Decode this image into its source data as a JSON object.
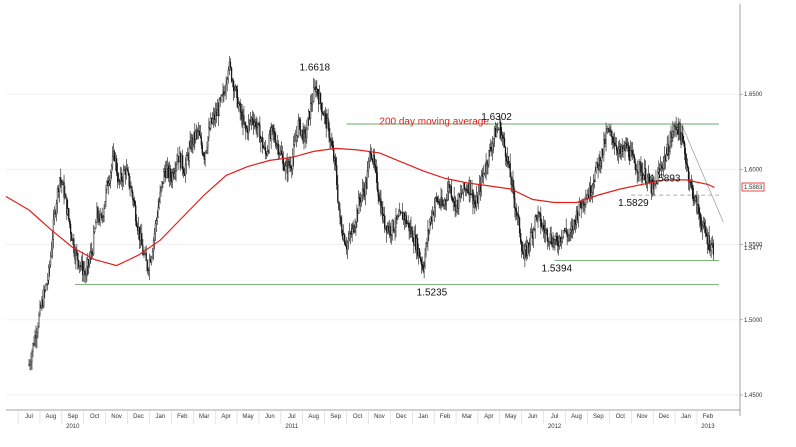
{
  "colors": {
    "price": "#111111",
    "moving_average": "#e0201b",
    "support_resistance": "#6aaa6a",
    "trendline": "#999999",
    "grid": "#e8e8e8",
    "axis": "#888888",
    "last_price_tag": "#e0201b"
  },
  "chart_data": {
    "type": "candlestick",
    "title": "",
    "xlabel": "",
    "ylabel": "",
    "grid": false,
    "y_axis_position": "right",
    "ylim": [
      1.44,
      1.71
    ],
    "yticks": [
      {
        "value": 1.65,
        "label": "1.6500"
      },
      {
        "value": 1.6,
        "label": "1.6000"
      },
      {
        "value": 1.55,
        "label": "1.5500"
      },
      {
        "value": 1.5,
        "label": "1.5000"
      },
      {
        "value": 1.45,
        "label": "1.4500"
      }
    ],
    "y_tags": [
      {
        "value": 1.5883,
        "label": "1.5883",
        "style": "red-box"
      },
      {
        "value": 1.5477,
        "label": "1.5477",
        "style": "plain"
      }
    ],
    "x_months": [
      "Jul",
      "Aug",
      "Sep",
      "Oct",
      "Nov",
      "Dec",
      "Jan",
      "Feb",
      "Mar",
      "Apr",
      "May",
      "Jun",
      "Jul",
      "Aug",
      "Sep",
      "Oct",
      "Nov",
      "Dec",
      "Jan",
      "Feb",
      "Mar",
      "Apr",
      "May",
      "Jun",
      "Jul",
      "Aug",
      "Sep",
      "Oct",
      "Nov",
      "Dec",
      "Jan",
      "Feb"
    ],
    "x_years": [
      {
        "label": "2010",
        "month_index": 2
      },
      {
        "label": "2011",
        "month_index": 12
      },
      {
        "label": "2012",
        "month_index": 24
      },
      {
        "label": "2013",
        "month_index": 31
      }
    ],
    "price_series": {
      "name": "",
      "points": [
        [
          0,
          1.47
        ],
        [
          0.5,
          1.505
        ],
        [
          0.9,
          1.53
        ],
        [
          1.2,
          1.575
        ],
        [
          1.4,
          1.595
        ],
        [
          1.6,
          1.585
        ],
        [
          1.9,
          1.56
        ],
        [
          2.1,
          1.545
        ],
        [
          2.4,
          1.535
        ],
        [
          2.6,
          1.53
        ],
        [
          2.9,
          1.548
        ],
        [
          3.1,
          1.57
        ],
        [
          3.3,
          1.565
        ],
        [
          3.6,
          1.592
        ],
        [
          3.9,
          1.61
        ],
        [
          4.1,
          1.59
        ],
        [
          4.4,
          1.6
        ],
        [
          4.7,
          1.585
        ],
        [
          5.0,
          1.56
        ],
        [
          5.2,
          1.545
        ],
        [
          5.4,
          1.535
        ],
        [
          5.6,
          1.545
        ],
        [
          5.9,
          1.575
        ],
        [
          6.2,
          1.6
        ],
        [
          6.5,
          1.595
        ],
        [
          6.8,
          1.61
        ],
        [
          7.1,
          1.6
        ],
        [
          7.4,
          1.617
        ],
        [
          7.7,
          1.625
        ],
        [
          8.0,
          1.61
        ],
        [
          8.3,
          1.63
        ],
        [
          8.6,
          1.638
        ],
        [
          8.9,
          1.65
        ],
        [
          9.1,
          1.67
        ],
        [
          9.3,
          1.66
        ],
        [
          9.6,
          1.64
        ],
        [
          9.9,
          1.625
        ],
        [
          10.2,
          1.635
        ],
        [
          10.5,
          1.625
        ],
        [
          10.8,
          1.61
        ],
        [
          11.1,
          1.625
        ],
        [
          11.4,
          1.615
        ],
        [
          11.7,
          1.6
        ],
        [
          12.0,
          1.605
        ],
        [
          12.3,
          1.63
        ],
        [
          12.6,
          1.62
        ],
        [
          12.9,
          1.645
        ],
        [
          13.1,
          1.655
        ],
        [
          13.4,
          1.64
        ],
        [
          13.7,
          1.625
        ],
        [
          14.0,
          1.6
        ],
        [
          14.2,
          1.565
        ],
        [
          14.5,
          1.55
        ],
        [
          14.8,
          1.56
        ],
        [
          15.1,
          1.58
        ],
        [
          15.4,
          1.59
        ],
        [
          15.6,
          1.615
        ],
        [
          15.9,
          1.59
        ],
        [
          16.2,
          1.565
        ],
        [
          16.5,
          1.56
        ],
        [
          16.8,
          1.565
        ],
        [
          17.1,
          1.57
        ],
        [
          17.4,
          1.56
        ],
        [
          17.7,
          1.55
        ],
        [
          18.0,
          1.535
        ],
        [
          18.3,
          1.565
        ],
        [
          18.6,
          1.58
        ],
        [
          18.9,
          1.575
        ],
        [
          19.2,
          1.59
        ],
        [
          19.5,
          1.575
        ],
        [
          19.8,
          1.585
        ],
        [
          20.1,
          1.59
        ],
        [
          20.4,
          1.575
        ],
        [
          20.7,
          1.595
        ],
        [
          21.0,
          1.61
        ],
        [
          21.3,
          1.625
        ],
        [
          21.5,
          1.628
        ],
        [
          21.8,
          1.61
        ],
        [
          22.1,
          1.585
        ],
        [
          22.4,
          1.56
        ],
        [
          22.6,
          1.54
        ],
        [
          22.9,
          1.555
        ],
        [
          23.2,
          1.57
        ],
        [
          23.5,
          1.56
        ],
        [
          23.8,
          1.555
        ],
        [
          24.1,
          1.55
        ],
        [
          24.4,
          1.56
        ],
        [
          24.7,
          1.555
        ],
        [
          25.0,
          1.57
        ],
        [
          25.3,
          1.58
        ],
        [
          25.6,
          1.585
        ],
        [
          25.9,
          1.6
        ],
        [
          26.2,
          1.612
        ],
        [
          26.4,
          1.625
        ],
        [
          26.7,
          1.62
        ],
        [
          27.0,
          1.61
        ],
        [
          27.3,
          1.615
        ],
        [
          27.6,
          1.605
        ],
        [
          27.9,
          1.6
        ],
        [
          28.2,
          1.595
        ],
        [
          28.5,
          1.585
        ],
        [
          28.8,
          1.6
        ],
        [
          29.1,
          1.61
        ],
        [
          29.4,
          1.625
        ],
        [
          29.6,
          1.63
        ],
        [
          29.9,
          1.615
        ],
        [
          30.2,
          1.59
        ],
        [
          30.5,
          1.575
        ],
        [
          30.8,
          1.56
        ],
        [
          31.1,
          1.55
        ],
        [
          31.3,
          1.547
        ]
      ]
    },
    "moving_average_series": {
      "name": "200 day moving average",
      "points": [
        [
          0,
          1.573
        ],
        [
          1,
          1.56
        ],
        [
          2,
          1.548
        ],
        [
          3,
          1.54
        ],
        [
          4,
          1.536
        ],
        [
          5,
          1.543
        ],
        [
          6,
          1.553
        ],
        [
          7,
          1.568
        ],
        [
          8,
          1.583
        ],
        [
          9,
          1.596
        ],
        [
          10,
          1.602
        ],
        [
          11,
          1.606
        ],
        [
          12,
          1.608
        ],
        [
          13,
          1.612
        ],
        [
          14,
          1.614
        ],
        [
          15,
          1.613
        ],
        [
          16,
          1.611
        ],
        [
          17,
          1.605
        ],
        [
          18,
          1.599
        ],
        [
          19,
          1.594
        ],
        [
          20,
          1.591
        ],
        [
          21,
          1.589
        ],
        [
          22,
          1.587
        ],
        [
          23,
          1.58
        ],
        [
          24,
          1.578
        ],
        [
          25,
          1.578
        ],
        [
          26,
          1.583
        ],
        [
          27,
          1.587
        ],
        [
          28,
          1.59
        ],
        [
          29,
          1.593
        ],
        [
          30,
          1.593
        ],
        [
          31,
          1.59
        ],
        [
          31.3,
          1.588
        ]
      ]
    },
    "horizontal_lines": [
      {
        "value": 1.6302,
        "x_start": 14.5,
        "x_end": 31.5,
        "style": "solid"
      },
      {
        "value": 1.5235,
        "x_start": 2.1,
        "x_end": 31.5,
        "style": "solid"
      },
      {
        "value": 1.5394,
        "x_start": 24.0,
        "x_end": 31.5,
        "style": "solid"
      },
      {
        "value": 1.5829,
        "x_start": 27.5,
        "x_end": 31.5,
        "style": "dashed"
      }
    ],
    "trendlines": [
      {
        "points": [
          [
            29.8,
            1.63
          ],
          [
            31.7,
            1.565
          ]
        ]
      }
    ],
    "annotations": [
      {
        "text": "1.6618",
        "x": 13.05,
        "y": 1.6618
      },
      {
        "text": "1.6302",
        "x": 21.35,
        "y": 1.6302
      },
      {
        "text": "1.5893",
        "x": 29.05,
        "y": 1.5893
      },
      {
        "text": "1.5829",
        "x": 27.6,
        "y": 1.5829
      },
      {
        "text": "1.5394",
        "x": 24.1,
        "y": 1.5394
      },
      {
        "text": "1.5235",
        "x": 18.4,
        "y": 1.5235
      }
    ],
    "moving_average_label": {
      "text": "200 day moving average",
      "x": 16.0,
      "y": 1.63
    }
  }
}
